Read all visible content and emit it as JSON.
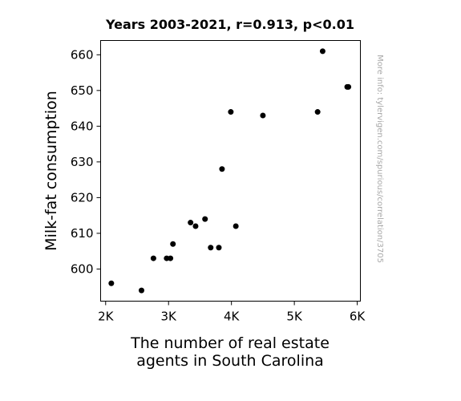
{
  "chart_data": {
    "type": "scatter",
    "title": "Years 2003-2021, r=0.913, p<0.01",
    "xlabel_lines": [
      "The number of real estate",
      "agents in South Carolina"
    ],
    "ylabel": "Milk-fat consumption",
    "side_note": "More info: tylervigen.com/spurious/correlation/3705",
    "xlim": [
      1920,
      6050
    ],
    "ylim": [
      591,
      664
    ],
    "x_ticks": [
      {
        "value": 2000,
        "label": "2K"
      },
      {
        "value": 3000,
        "label": "3K"
      },
      {
        "value": 4000,
        "label": "4K"
      },
      {
        "value": 5000,
        "label": "5K"
      },
      {
        "value": 6000,
        "label": "6K"
      }
    ],
    "y_ticks": [
      {
        "value": 600,
        "label": "600"
      },
      {
        "value": 610,
        "label": "610"
      },
      {
        "value": 620,
        "label": "620"
      },
      {
        "value": 630,
        "label": "630"
      },
      {
        "value": 640,
        "label": "640"
      },
      {
        "value": 650,
        "label": "650"
      },
      {
        "value": 660,
        "label": "660"
      }
    ],
    "grid": false,
    "marker_color": "#000000",
    "points": [
      {
        "x": 2090,
        "y": 596
      },
      {
        "x": 2570,
        "y": 594
      },
      {
        "x": 2760,
        "y": 603
      },
      {
        "x": 2970,
        "y": 603
      },
      {
        "x": 3030,
        "y": 603
      },
      {
        "x": 3070,
        "y": 607
      },
      {
        "x": 3350,
        "y": 613
      },
      {
        "x": 3430,
        "y": 612
      },
      {
        "x": 3580,
        "y": 614
      },
      {
        "x": 3670,
        "y": 606
      },
      {
        "x": 3800,
        "y": 606
      },
      {
        "x": 3850,
        "y": 628
      },
      {
        "x": 3990,
        "y": 644
      },
      {
        "x": 4070,
        "y": 612
      },
      {
        "x": 4500,
        "y": 643
      },
      {
        "x": 5370,
        "y": 644
      },
      {
        "x": 5450,
        "y": 661
      },
      {
        "x": 5840,
        "y": 651
      },
      {
        "x": 5860,
        "y": 651
      }
    ]
  }
}
